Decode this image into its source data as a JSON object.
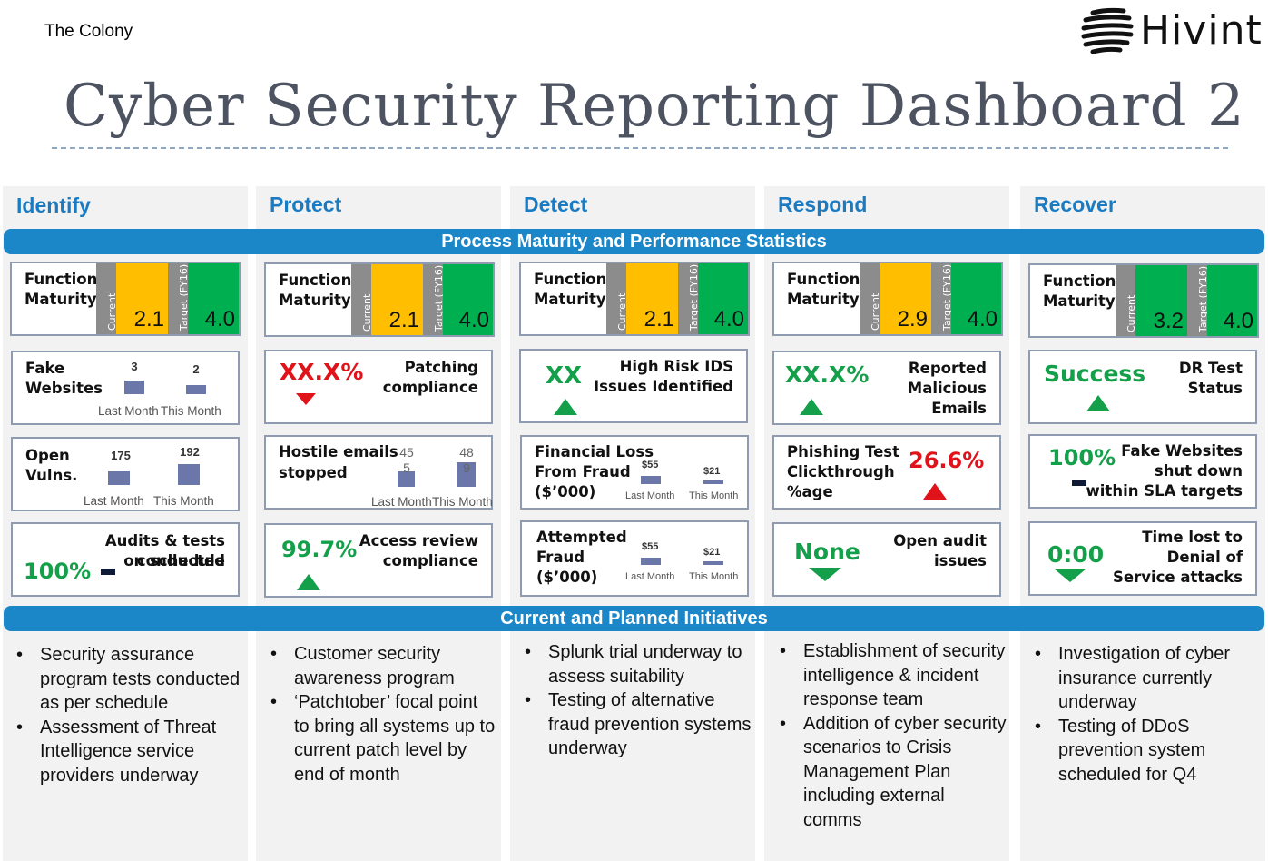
{
  "header": {
    "org": "The Colony",
    "logo_text": "Hivint",
    "title": "Cyber Security Reporting Dashboard 2"
  },
  "columns": [
    "Identify",
    "Protect",
    "Detect",
    "Respond",
    "Recover"
  ],
  "bands": {
    "stats": "Process Maturity and Performance Statistics",
    "initiatives": "Current and Planned Initiatives"
  },
  "maturity": {
    "label_line1": "Function",
    "label_line2": "Maturity",
    "current_label": "Current",
    "target_label": "Target (FY16)",
    "current": [
      "2.1",
      "2.1",
      "2.1",
      "2.9",
      "3.2"
    ],
    "target": [
      "4.0",
      "4.0",
      "4.0",
      "4.0",
      "4.0"
    ],
    "colors": {
      "amber": "#ffbf00",
      "green": "#00b050",
      "grey": "#8c8c8c"
    }
  },
  "identify": {
    "fake": {
      "l1": "Fake",
      "l2": "Websites",
      "v1": "3",
      "v2": "2",
      "x1": "Last Month",
      "x2": "This Month"
    },
    "vulns": {
      "l1": "Open",
      "l2": "Vulns.",
      "v1": "175",
      "v2": "192",
      "x1": "Last Month",
      "x2": "This Month"
    },
    "audits": {
      "l1": "Audits & tests conducted",
      "l2": "on schedule",
      "value": "100%"
    }
  },
  "protect": {
    "patch": {
      "value": "XX.X%",
      "l1": "Patching",
      "l2": "compliance"
    },
    "hostile": {
      "l1": "Hostile emails",
      "l2": "stopped",
      "v1a": "45",
      "v1b": "5",
      "v2a": "48",
      "v2b": "9",
      "x1": "Last Month",
      "x2": "This Month"
    },
    "access": {
      "value": "99.7%",
      "l1": "Access review",
      "l2": "compliance"
    }
  },
  "detect": {
    "ids": {
      "value": "XX",
      "l1": "High Risk IDS",
      "l2": "Issues Identified"
    },
    "loss": {
      "l1": "Financial Loss",
      "l2": "From Fraud",
      "l3": "($’000)",
      "v1": "$55",
      "v2": "$21",
      "x1": "Last Month",
      "x2": "This Month"
    },
    "attempt": {
      "l1": "Attempted",
      "l2": "Fraud",
      "l3": "($’000)",
      "v1": "$55",
      "v2": "$21",
      "x1": "Last Month",
      "x2": "This Month"
    }
  },
  "respond": {
    "reported": {
      "value": "XX.X%",
      "l1": "Reported",
      "l2": "Malicious",
      "l3": "Emails"
    },
    "phish": {
      "l1": "Phishing Test",
      "l2": "Clickthrough",
      "l3": "%age",
      "value": "26.6%"
    },
    "audit": {
      "value": "None",
      "l1": "Open audit",
      "l2": "issues"
    }
  },
  "recover": {
    "dr": {
      "value": "Success",
      "l1": "DR Test",
      "l2": "Status"
    },
    "fakesla": {
      "value": "100%",
      "l1": "Fake Websites",
      "l2": "shut down",
      "l3": "within SLA targets"
    },
    "dos": {
      "value": "0:00",
      "l1": "Time lost to",
      "l2": "Denial of",
      "l3": "Service attacks"
    }
  },
  "initiatives": {
    "identify": [
      "Security assurance program tests conducted as per schedule",
      "Assessment of Threat Intelligence service providers underway"
    ],
    "protect": [
      "Customer security awareness program",
      "‘Patchtober’ focal point to bring all systems up to current patch level by end of month"
    ],
    "detect": [
      "Splunk trial underway to assess suitability",
      "Testing of alternative fraud prevention systems underway"
    ],
    "respond": [
      "Establishment of security intelligence & incident response team",
      "Addition of cyber security scenarios to Crisis Management Plan including external comms"
    ],
    "recover": [
      "Investigation of cyber insurance currently underway",
      "Testing of DDoS prevention system scheduled for Q4"
    ]
  }
}
